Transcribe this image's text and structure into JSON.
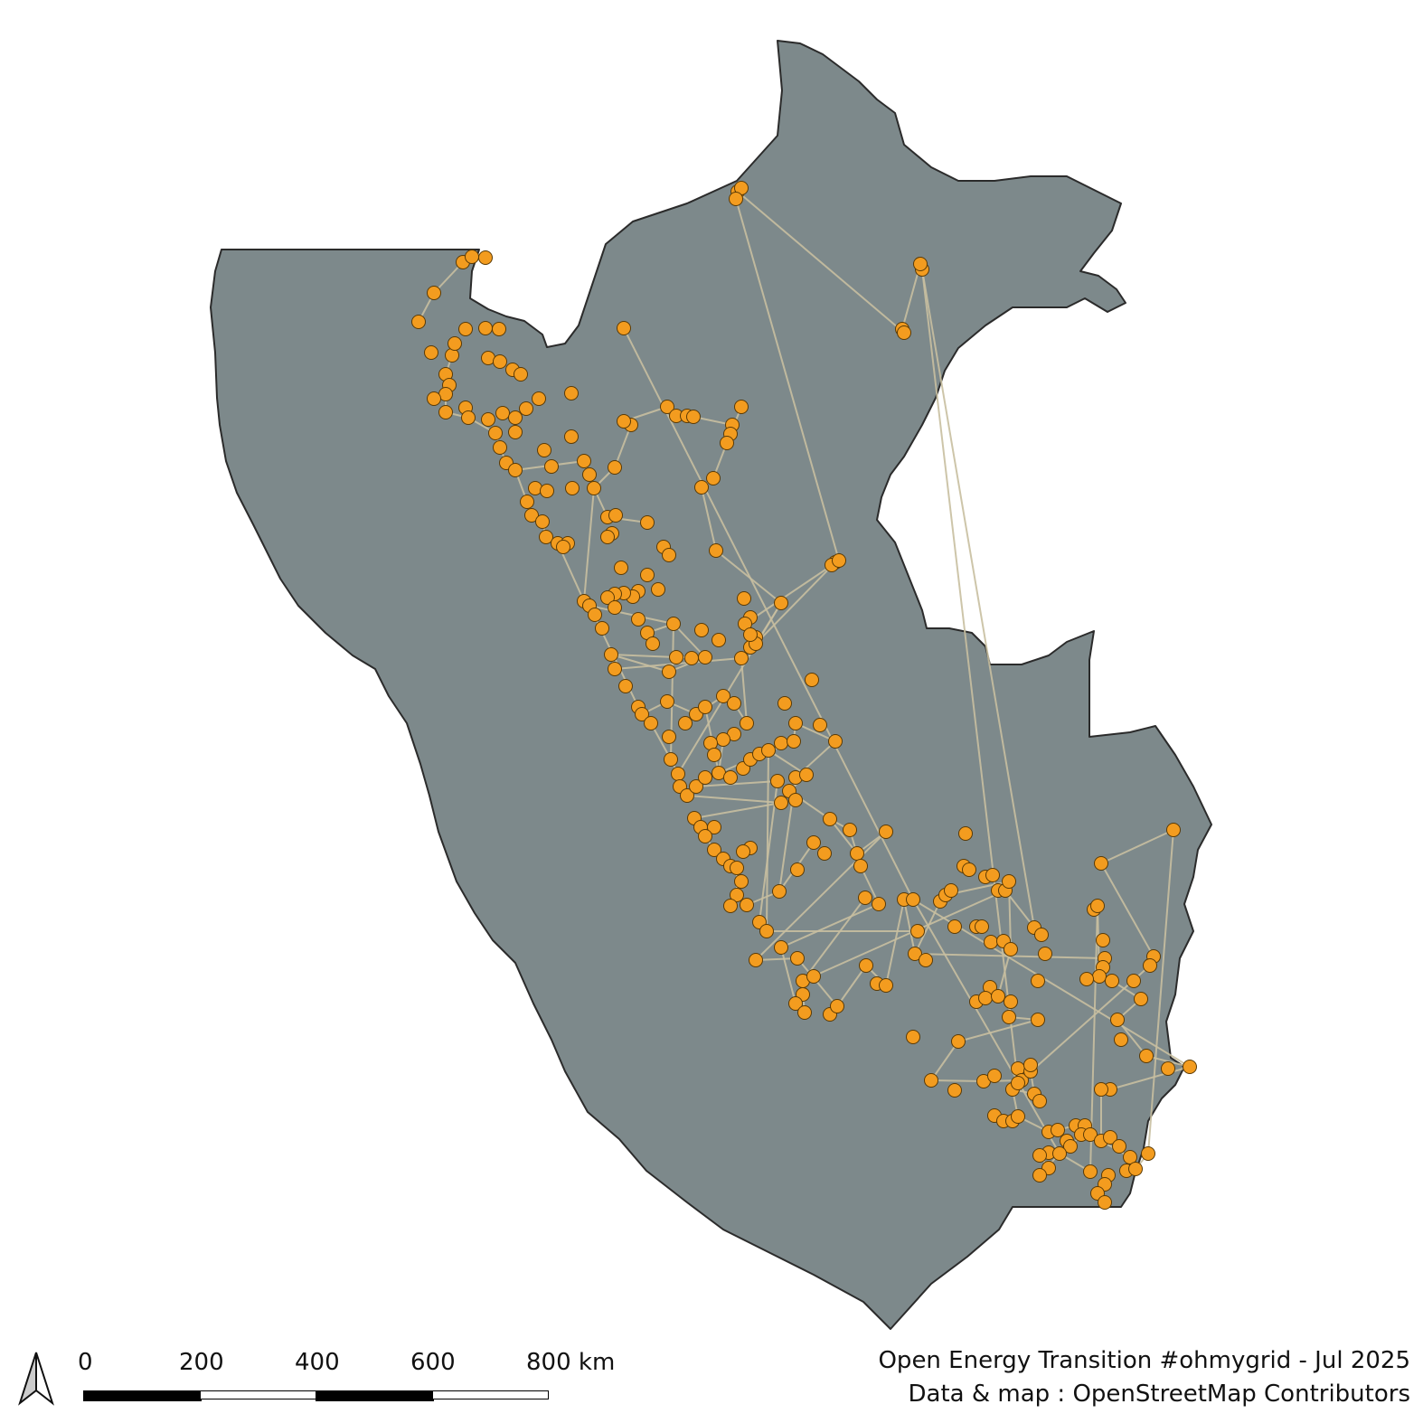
{
  "scale_bar": {
    "labels": [
      "0",
      "200",
      "400",
      "600",
      "800 km"
    ]
  },
  "credits": {
    "line1": "Open Energy Transition #ohmygrid - Jul 2025",
    "line2": "Data & map : OpenStreetMap Contributors"
  },
  "icons": {
    "north_arrow": "north-arrow-icon"
  },
  "colors": {
    "land": "#7d898b",
    "border": "#2b2b2b",
    "lines": "#c8bfa0",
    "nodes": "#f39c1f"
  }
}
